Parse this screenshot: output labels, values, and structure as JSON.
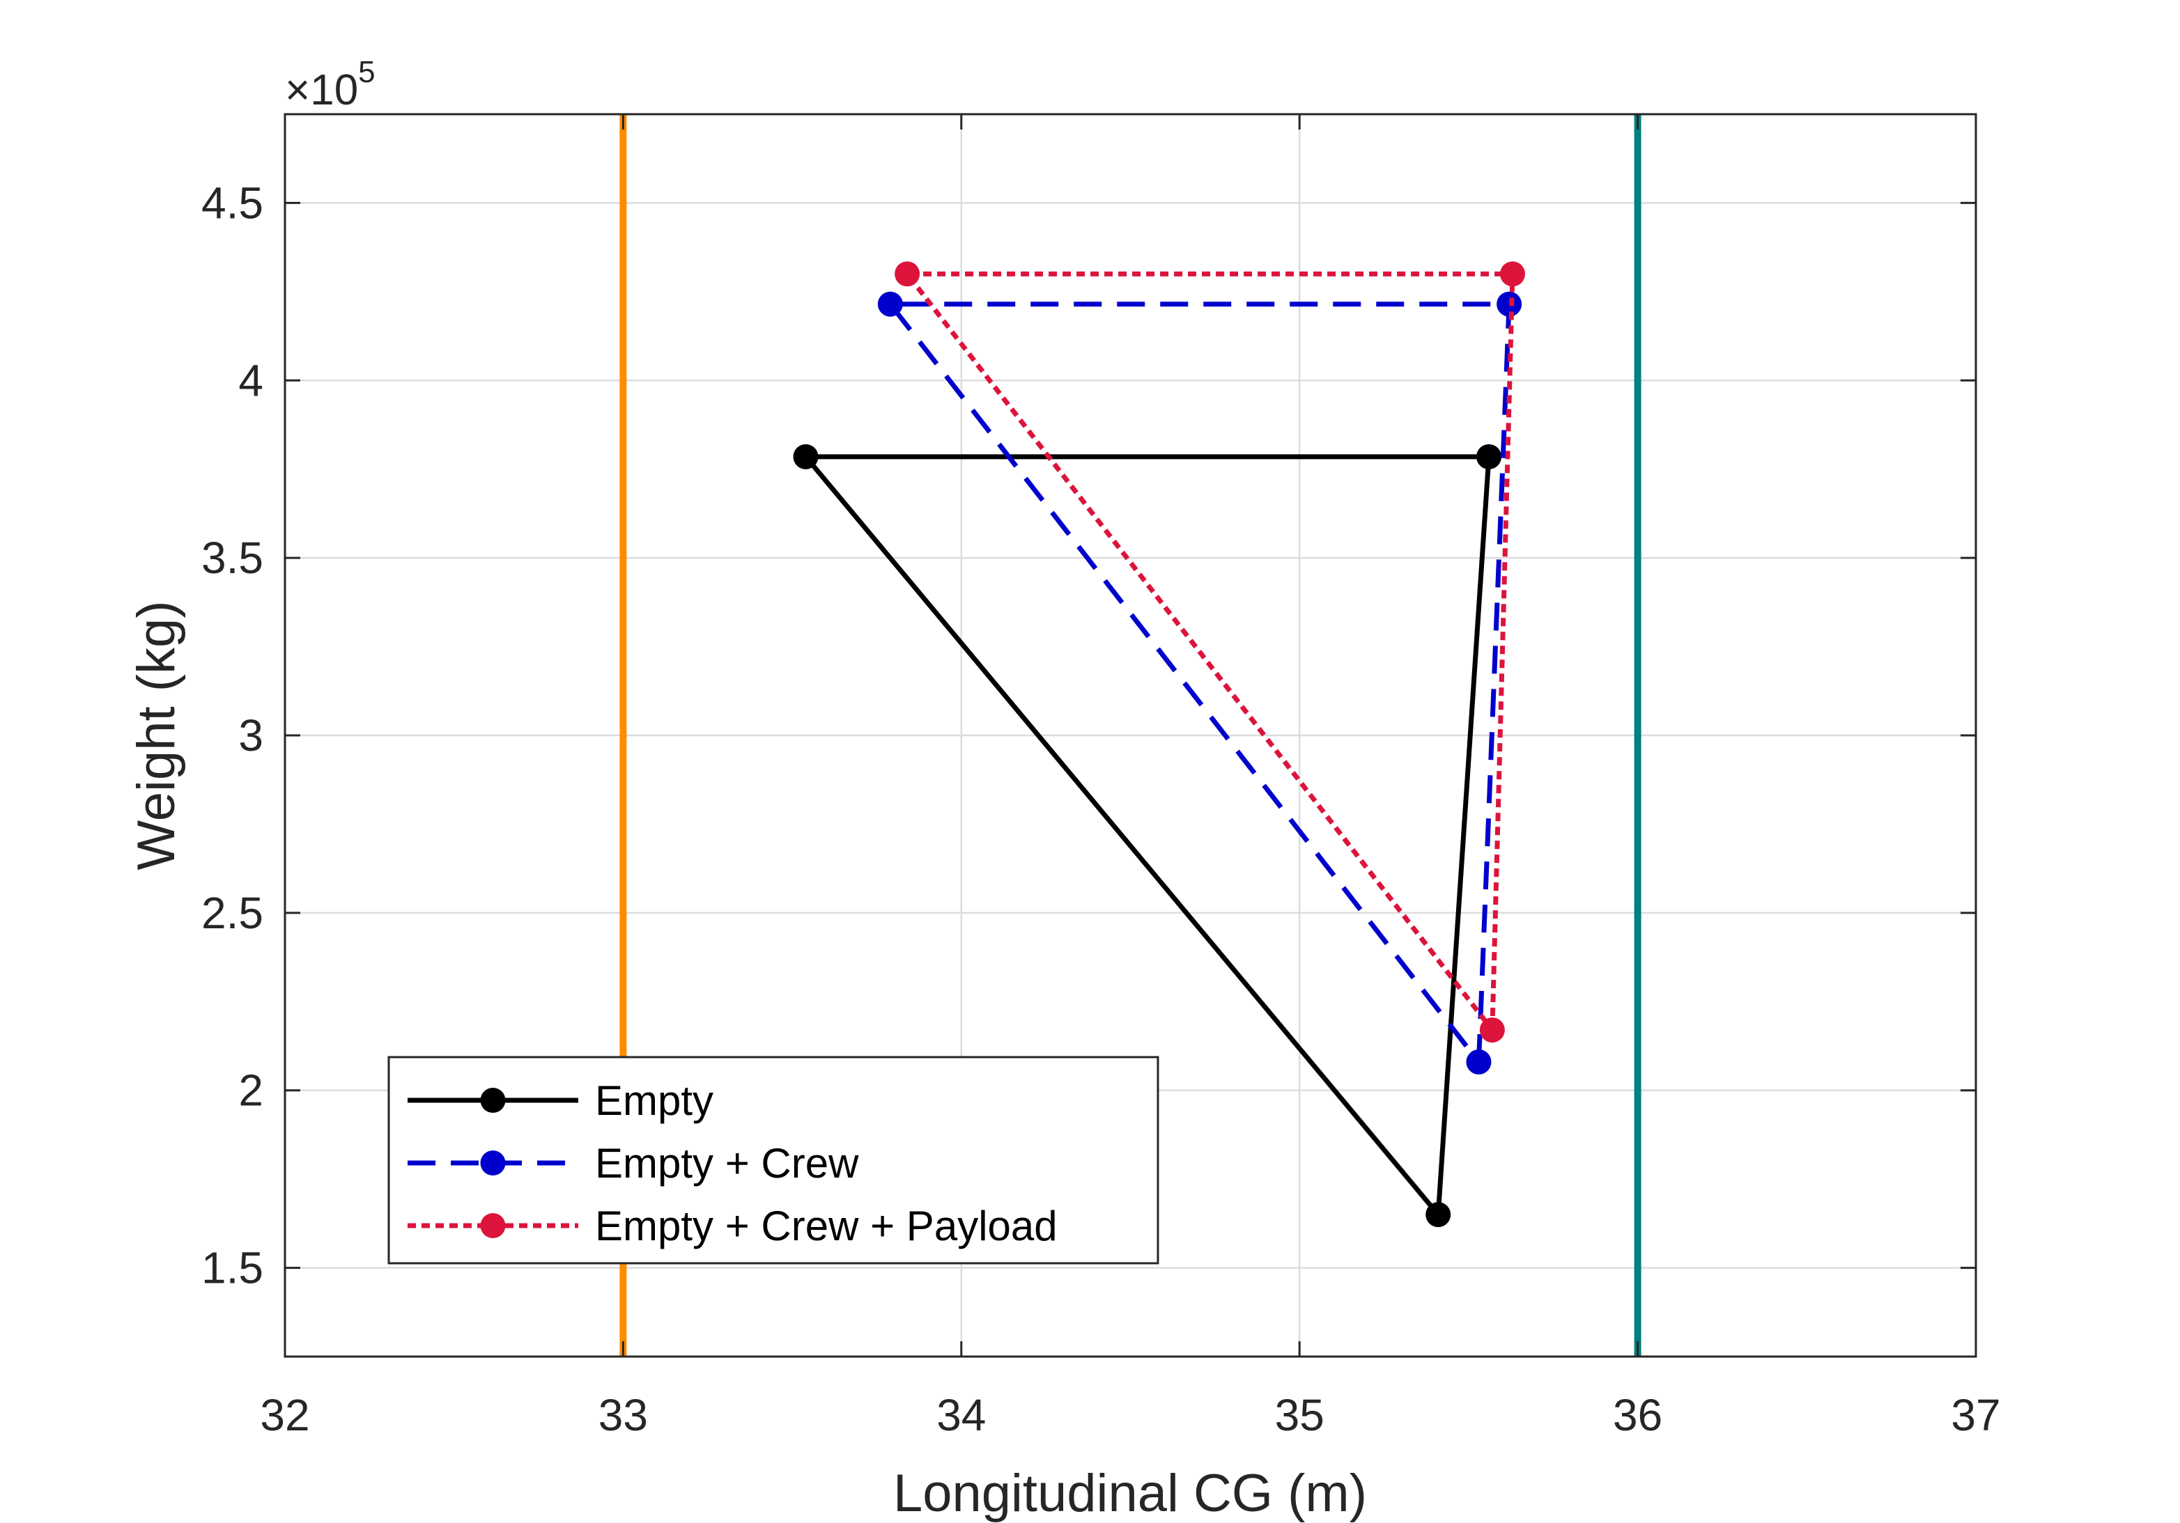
{
  "chart_data": {
    "type": "line",
    "title": "",
    "xlabel": "Longitudinal CG (m)",
    "ylabel": "Weight (kg)",
    "xlim": [
      32,
      37
    ],
    "ylim": [
      1.25,
      4.75
    ],
    "y_multiplier_label": "×10",
    "y_multiplier_exponent": "5",
    "x_ticks": [
      32,
      33,
      34,
      35,
      36,
      37
    ],
    "x_tick_labels": [
      "32",
      "33",
      "34",
      "35",
      "36",
      "37"
    ],
    "y_ticks": [
      1.5,
      2,
      2.5,
      3,
      3.5,
      4,
      4.5
    ],
    "y_tick_labels": [
      "1.5",
      "2",
      "2.5",
      "3",
      "3.5",
      "4",
      "4.5"
    ],
    "grid": true,
    "legend_position": "bottom-left",
    "reference_lines": [
      {
        "x": 33,
        "color": "#FF8C00"
      },
      {
        "x": 36,
        "color": "#008080"
      }
    ],
    "series": [
      {
        "name": "Empty",
        "color": "#000000",
        "dash": "solid",
        "points": [
          {
            "x": 35.41,
            "y": 1.65
          },
          {
            "x": 35.56,
            "y": 3.785
          },
          {
            "x": 33.54,
            "y": 3.785
          },
          {
            "x": 35.41,
            "y": 1.65
          }
        ]
      },
      {
        "name": "Empty + Crew",
        "color": "#0000CD",
        "dash": "dashed",
        "points": [
          {
            "x": 35.53,
            "y": 2.08
          },
          {
            "x": 35.62,
            "y": 4.215
          },
          {
            "x": 33.79,
            "y": 4.215
          },
          {
            "x": 35.53,
            "y": 2.08
          }
        ]
      },
      {
        "name": "Empty + Crew + Payload",
        "color": "#DC143C",
        "dash": "dotted",
        "points": [
          {
            "x": 35.57,
            "y": 2.17
          },
          {
            "x": 35.63,
            "y": 4.3
          },
          {
            "x": 33.84,
            "y": 4.3
          },
          {
            "x": 35.57,
            "y": 2.17
          }
        ]
      }
    ]
  }
}
